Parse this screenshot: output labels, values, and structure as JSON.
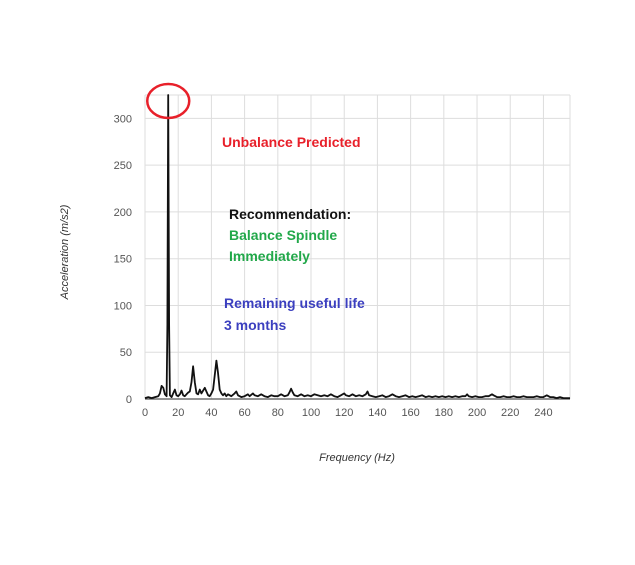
{
  "chart_data": {
    "type": "line",
    "title": "",
    "xlabel": "Frequency (Hz)",
    "ylabel": "Acceleration (m/s2)",
    "xlim": [
      0,
      256
    ],
    "ylim": [
      0,
      325
    ],
    "x_ticks": [
      0,
      20,
      40,
      60,
      80,
      100,
      120,
      140,
      160,
      180,
      200,
      220,
      240
    ],
    "y_ticks": [
      0,
      50,
      100,
      150,
      200,
      250,
      300
    ],
    "grid": true,
    "series": [
      {
        "color": "#111111",
        "points": [
          [
            0,
            1
          ],
          [
            2,
            2
          ],
          [
            4,
            1
          ],
          [
            6,
            2
          ],
          [
            8,
            3
          ],
          [
            9,
            6
          ],
          [
            10,
            14
          ],
          [
            11,
            12
          ],
          [
            12,
            5
          ],
          [
            13,
            3
          ],
          [
            13.5,
            80
          ],
          [
            14,
            325
          ],
          [
            14.5,
            80
          ],
          [
            15,
            4
          ],
          [
            16,
            2
          ],
          [
            17,
            6
          ],
          [
            18,
            10
          ],
          [
            19,
            4
          ],
          [
            20,
            3
          ],
          [
            21,
            5
          ],
          [
            22,
            9
          ],
          [
            23,
            4
          ],
          [
            24,
            3
          ],
          [
            25,
            5
          ],
          [
            26,
            7
          ],
          [
            27,
            8
          ],
          [
            28,
            18
          ],
          [
            29,
            35
          ],
          [
            30,
            18
          ],
          [
            31,
            6
          ],
          [
            32,
            5
          ],
          [
            33,
            10
          ],
          [
            34,
            6
          ],
          [
            35,
            9
          ],
          [
            36,
            12
          ],
          [
            37,
            8
          ],
          [
            38,
            4
          ],
          [
            39,
            3
          ],
          [
            40,
            6
          ],
          [
            41,
            10
          ],
          [
            42,
            25
          ],
          [
            43,
            41
          ],
          [
            44,
            28
          ],
          [
            45,
            10
          ],
          [
            46,
            6
          ],
          [
            47,
            4
          ],
          [
            48,
            6
          ],
          [
            49,
            3
          ],
          [
            50,
            5
          ],
          [
            52,
            3
          ],
          [
            54,
            6
          ],
          [
            55,
            8
          ],
          [
            56,
            4
          ],
          [
            58,
            2
          ],
          [
            60,
            3
          ],
          [
            62,
            5
          ],
          [
            63,
            3
          ],
          [
            65,
            6
          ],
          [
            66,
            4
          ],
          [
            68,
            3
          ],
          [
            70,
            5
          ],
          [
            72,
            3
          ],
          [
            74,
            2
          ],
          [
            76,
            4
          ],
          [
            78,
            3
          ],
          [
            80,
            3
          ],
          [
            82,
            5
          ],
          [
            84,
            3
          ],
          [
            86,
            4
          ],
          [
            87,
            7
          ],
          [
            88,
            11
          ],
          [
            89,
            7
          ],
          [
            90,
            4
          ],
          [
            92,
            3
          ],
          [
            94,
            5
          ],
          [
            96,
            3
          ],
          [
            98,
            4
          ],
          [
            100,
            3
          ],
          [
            102,
            5
          ],
          [
            104,
            4
          ],
          [
            106,
            3
          ],
          [
            108,
            4
          ],
          [
            110,
            3
          ],
          [
            112,
            5
          ],
          [
            114,
            3
          ],
          [
            116,
            2
          ],
          [
            118,
            4
          ],
          [
            120,
            6
          ],
          [
            121,
            4
          ],
          [
            123,
            3
          ],
          [
            125,
            5
          ],
          [
            127,
            3
          ],
          [
            129,
            4
          ],
          [
            131,
            3
          ],
          [
            133,
            5
          ],
          [
            134,
            8
          ],
          [
            135,
            4
          ],
          [
            137,
            3
          ],
          [
            139,
            2
          ],
          [
            141,
            3
          ],
          [
            143,
            4
          ],
          [
            145,
            2
          ],
          [
            147,
            3
          ],
          [
            149,
            5
          ],
          [
            151,
            3
          ],
          [
            153,
            2
          ],
          [
            155,
            3
          ],
          [
            157,
            4
          ],
          [
            159,
            2
          ],
          [
            161,
            3
          ],
          [
            163,
            2
          ],
          [
            165,
            3
          ],
          [
            167,
            4
          ],
          [
            169,
            2
          ],
          [
            171,
            3
          ],
          [
            173,
            2
          ],
          [
            175,
            3
          ],
          [
            177,
            2
          ],
          [
            179,
            3
          ],
          [
            181,
            2
          ],
          [
            183,
            3
          ],
          [
            185,
            2
          ],
          [
            187,
            3
          ],
          [
            189,
            2
          ],
          [
            191,
            3
          ],
          [
            193,
            3
          ],
          [
            194,
            5
          ],
          [
            195,
            3
          ],
          [
            197,
            2
          ],
          [
            199,
            3
          ],
          [
            201,
            2
          ],
          [
            203,
            2
          ],
          [
            205,
            3
          ],
          [
            207,
            3
          ],
          [
            209,
            5
          ],
          [
            210,
            4
          ],
          [
            212,
            2
          ],
          [
            214,
            2
          ],
          [
            216,
            3
          ],
          [
            218,
            2
          ],
          [
            220,
            2
          ],
          [
            222,
            3
          ],
          [
            224,
            2
          ],
          [
            226,
            2
          ],
          [
            228,
            3
          ],
          [
            230,
            2
          ],
          [
            232,
            2
          ],
          [
            234,
            2
          ],
          [
            236,
            3
          ],
          [
            238,
            2
          ],
          [
            240,
            2
          ],
          [
            242,
            4
          ],
          [
            244,
            2
          ],
          [
            246,
            2
          ],
          [
            248,
            1
          ],
          [
            250,
            2
          ],
          [
            252,
            1
          ],
          [
            254,
            1
          ],
          [
            256,
            1
          ]
        ]
      }
    ],
    "annotations": [
      {
        "text": "Unbalance Predicted",
        "color": "#e8202a"
      },
      {
        "text": "Recommendation:",
        "color": "#111111"
      },
      {
        "text": "Balance Spindle",
        "color": "#22a84a"
      },
      {
        "text": "Immediately",
        "color": "#22a84a"
      },
      {
        "text": "Remaining useful life",
        "color": "#3b3fbf"
      },
      {
        "text": "3 months",
        "color": "#3b3fbf"
      }
    ],
    "highlight": {
      "shape": "circle",
      "color": "#e8202a",
      "around_x": 14,
      "around_y": 325
    },
    "colors": {
      "grid": "#dddddd",
      "axis": "#555555"
    }
  }
}
